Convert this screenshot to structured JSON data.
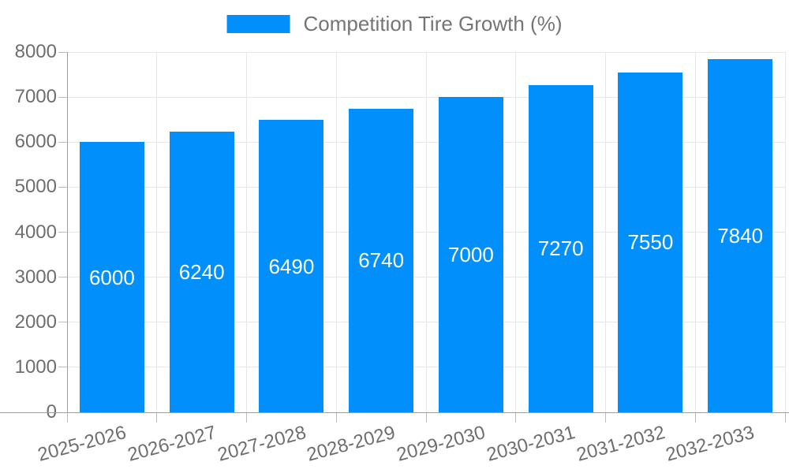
{
  "chart_data": {
    "type": "bar",
    "title": "Competition Tire Growth (%)",
    "categories": [
      "2025-2026",
      "2026-2027",
      "2027-2028",
      "2028-2029",
      "2029-2030",
      "2030-2031",
      "2031-2032",
      "2032-2033"
    ],
    "series": [
      {
        "name": "Competition Tire Growth (%)",
        "values": [
          6000,
          6240,
          6490,
          6740,
          7000,
          7270,
          7550,
          7840
        ]
      }
    ],
    "bar_value_labels": [
      "6000",
      "6240",
      "6490",
      "6740",
      "7000",
      "7270",
      "7550",
      "7840"
    ],
    "xlabel": "",
    "ylabel": "",
    "ylim": [
      0,
      8000
    ],
    "yticks": [
      0,
      1000,
      2000,
      3000,
      4000,
      5000,
      6000,
      7000,
      8000
    ],
    "ytick_labels": [
      "0",
      "1000",
      "2000",
      "3000",
      "4000",
      "5000",
      "6000",
      "7000",
      "8000"
    ],
    "grid": "both",
    "legend_position": "top",
    "colors": {
      "bar": "#008FFB",
      "bar_label": "#FFFFFF",
      "axis_text": "#6E6E6E",
      "legend_text": "#757575",
      "gridline": "#E7E7E7",
      "axis_line": "#9E9E9E",
      "tick": "#BDBDBD",
      "background": "#FFFFFF"
    }
  }
}
